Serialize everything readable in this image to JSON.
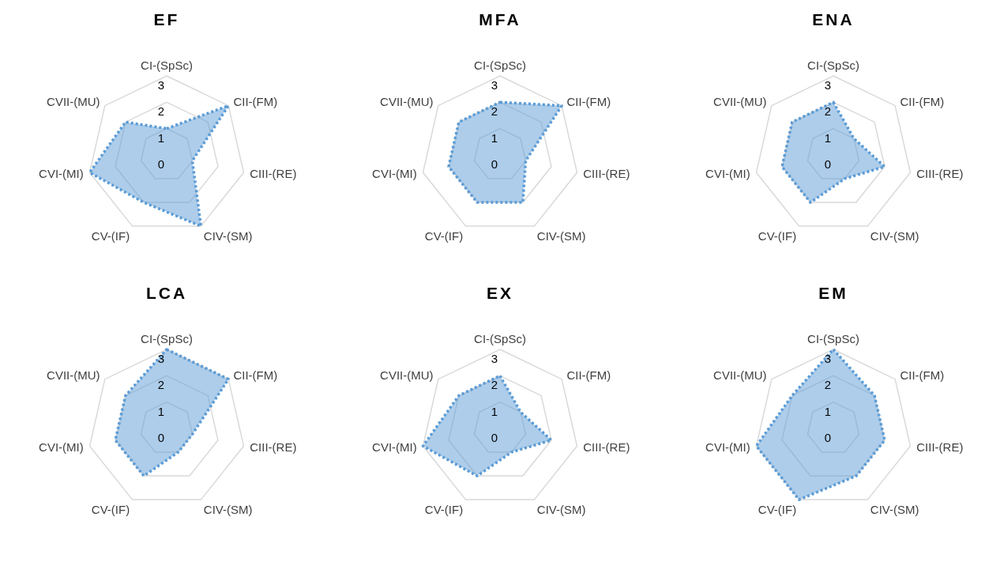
{
  "chart_data": [
    {
      "type": "radar",
      "title": "EF",
      "categories": [
        "CI-(SpSc)",
        "CII-(FM)",
        "CIII-(RE)",
        "CIV-(SM)",
        "CV-(IF)",
        "CVI-(MI)",
        "CVII-(MU)"
      ],
      "series": [
        {
          "color": "#5b9bd5",
          "values": [
            1,
            3,
            1,
            3,
            2,
            3,
            2
          ]
        }
      ],
      "ylim": [
        0,
        3
      ],
      "yticks": [
        0,
        1,
        2,
        3
      ],
      "grid": true,
      "legend": false,
      "line_style": "dotted",
      "marker": "none"
    },
    {
      "type": "radar",
      "title": "MFA",
      "categories": [
        "CI-(SpSc)",
        "CII-(FM)",
        "CIII-(RE)",
        "CIV-(SM)",
        "CV-(IF)",
        "CVI-(MI)",
        "CVII-(MU)"
      ],
      "series": [
        {
          "color": "#5b9bd5",
          "values": [
            2,
            3,
            1,
            2,
            2,
            2,
            2
          ]
        }
      ],
      "ylim": [
        0,
        3
      ],
      "yticks": [
        0,
        1,
        2,
        3
      ],
      "grid": true,
      "legend": false,
      "line_style": "dotted",
      "marker": "none"
    },
    {
      "type": "radar",
      "title": "ENA",
      "categories": [
        "CI-(SpSc)",
        "CII-(FM)",
        "CIII-(RE)",
        "CIV-(SM)",
        "CV-(IF)",
        "CVI-(MI)",
        "CVII-(MU)"
      ],
      "series": [
        {
          "color": "#5b9bd5",
          "values": [
            2,
            1,
            2,
            1,
            2,
            2,
            2
          ]
        }
      ],
      "ylim": [
        0,
        3
      ],
      "yticks": [
        0,
        1,
        2,
        3
      ],
      "grid": true,
      "legend": false,
      "line_style": "dotted",
      "marker": "none"
    },
    {
      "type": "radar",
      "title": "LCA",
      "categories": [
        "CI-(SpSc)",
        "CII-(FM)",
        "CIII-(RE)",
        "CIV-(SM)",
        "CV-(IF)",
        "CVI-(MI)",
        "CVII-(MU)"
      ],
      "series": [
        {
          "color": "#5b9bd5",
          "values": [
            3,
            3,
            1,
            1,
            2,
            2,
            2
          ]
        }
      ],
      "ylim": [
        0,
        3
      ],
      "yticks": [
        0,
        1,
        2,
        3
      ],
      "grid": true,
      "legend": false,
      "line_style": "dotted",
      "marker": "none"
    },
    {
      "type": "radar",
      "title": "EX",
      "categories": [
        "CI-(SpSc)",
        "CII-(FM)",
        "CIII-(RE)",
        "CIV-(SM)",
        "CV-(IF)",
        "CVI-(MI)",
        "CVII-(MU)"
      ],
      "series": [
        {
          "color": "#5b9bd5",
          "values": [
            2,
            1,
            2,
            1,
            2,
            3,
            2
          ]
        }
      ],
      "ylim": [
        0,
        3
      ],
      "yticks": [
        0,
        1,
        2,
        3
      ],
      "grid": true,
      "legend": false,
      "line_style": "dotted",
      "marker": "none"
    },
    {
      "type": "radar",
      "title": "EM",
      "categories": [
        "CI-(SpSc)",
        "CII-(FM)",
        "CIII-(RE)",
        "CIV-(SM)",
        "CV-(IF)",
        "CVI-(MI)",
        "CVII-(MU)"
      ],
      "series": [
        {
          "color": "#5b9bd5",
          "values": [
            3,
            2,
            2,
            2,
            3,
            3,
            2
          ]
        }
      ],
      "ylim": [
        0,
        3
      ],
      "yticks": [
        0,
        1,
        2,
        3
      ],
      "grid": true,
      "legend": false,
      "line_style": "dotted",
      "marker": "none"
    }
  ]
}
